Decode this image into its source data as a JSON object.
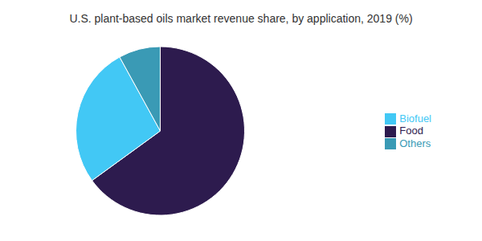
{
  "chart_data": {
    "type": "pie",
    "title": "U.S. plant-based oils market revenue share, by application, 2019 (%)",
    "categories": [
      "Food",
      "Biofuel",
      "Others"
    ],
    "values": [
      65.0,
      27.0,
      8.0
    ],
    "colors": [
      "#2d1b4e",
      "#42c8f5",
      "#3a9ab5"
    ],
    "legend": "right"
  }
}
